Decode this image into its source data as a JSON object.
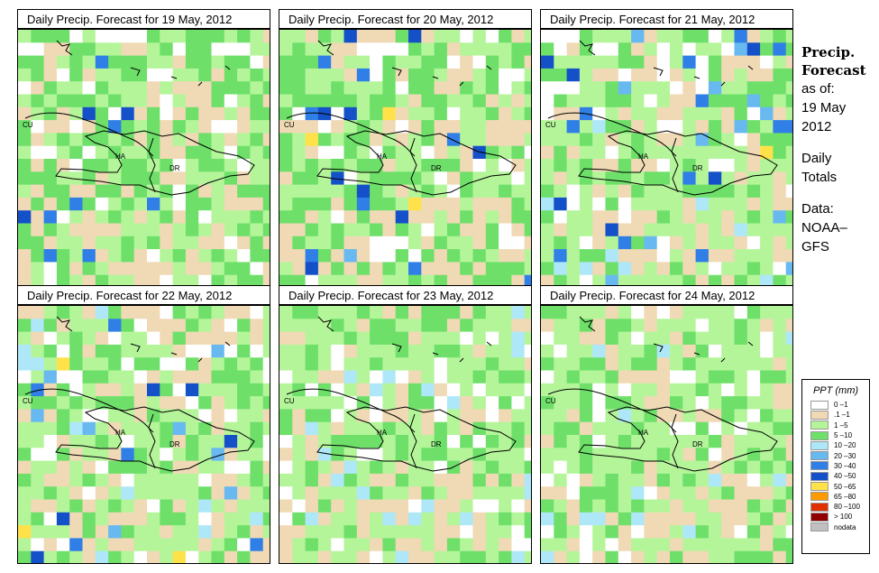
{
  "panels": [
    {
      "title": "Daily Precip. Forecast for  19 May, 2012",
      "seed": 19,
      "wet": 1.0
    },
    {
      "title": "Daily Precip. Forecast for  20 May, 2012",
      "seed": 20,
      "wet": 0.85
    },
    {
      "title": "Daily Precip. Forecast for  21 May, 2012",
      "seed": 21,
      "wet": 0.45
    },
    {
      "title": "Daily Precip. Forecast for  22 May, 2012",
      "seed": 22,
      "wet": 0.38
    },
    {
      "title": "Daily Precip. Forecast for  23 May, 2012",
      "seed": 23,
      "wet": 0.22
    },
    {
      "title": "Daily Precip. Forecast for  24 May, 2012",
      "seed": 24,
      "wet": 0.3
    }
  ],
  "labels": {
    "cu": "CU",
    "ha": "HA",
    "dr": "DR"
  },
  "side": {
    "heading1": "Precip.",
    "heading2": "Forecast",
    "asof": "as of:",
    "date1": "19 May",
    "date2": "2012",
    "daily1": "Daily",
    "daily2": "Totals",
    "data1": "Data:",
    "data2": "NOAA–",
    "data3": "GFS"
  },
  "legend": {
    "title": "PPT (mm)",
    "items": [
      {
        "label": "0 –1",
        "color": "#ffffff"
      },
      {
        "label": ".1 –1",
        "color": "#f0d9b5"
      },
      {
        "label": "1 –5",
        "color": "#b4f59a"
      },
      {
        "label": "5 –10",
        "color": "#6ee06a"
      },
      {
        "label": "10 –20",
        "color": "#aee8f8"
      },
      {
        "label": "20 –30",
        "color": "#68b9f0"
      },
      {
        "label": "30 –40",
        "color": "#2f7fe6"
      },
      {
        "label": "40 –50",
        "color": "#1450c8"
      },
      {
        "label": "50 –65",
        "color": "#ffe24a"
      },
      {
        "label": "65 –80",
        "color": "#ff9a00"
      },
      {
        "label": "80 –100",
        "color": "#e03000"
      },
      {
        "label": "> 100",
        "color": "#900000"
      },
      {
        "label": "nodata",
        "color": "#c0c0c0"
      }
    ]
  }
}
